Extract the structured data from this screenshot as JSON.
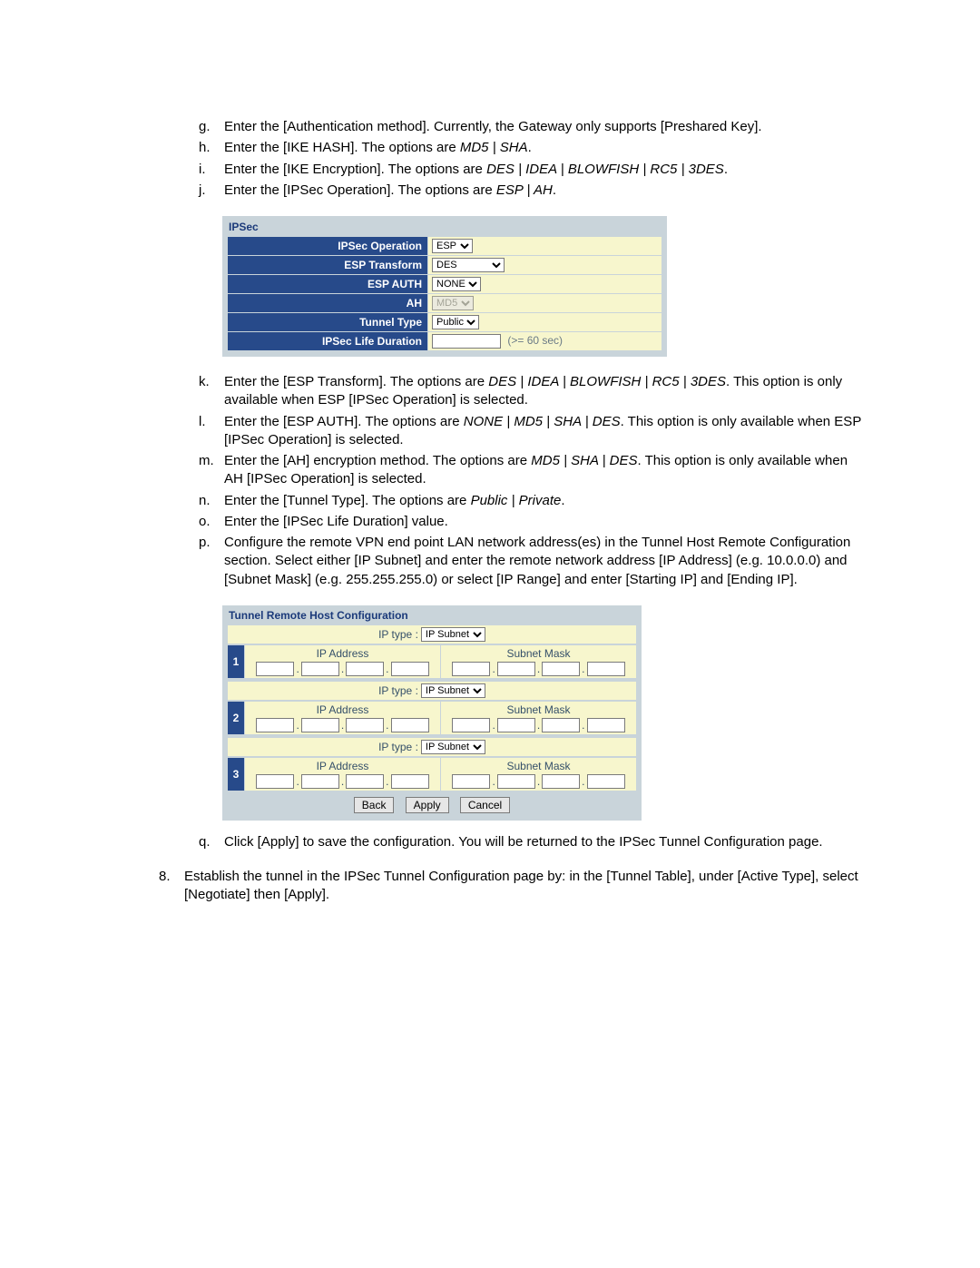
{
  "colors": {
    "panel_bg": "#c9d4da",
    "header_bg": "#274a8a",
    "header_text": "#ffffff",
    "cell_bg": "#f7f6cd",
    "title_text": "#1b3a7a",
    "muted_text": "#35506a",
    "hint_text": "#6a7a86"
  },
  "intro_items": [
    {
      "marker": "g.",
      "text": "Enter the [Authentication method].  Currently, the Gateway only supports [Preshared Key]."
    },
    {
      "marker": "h.",
      "text_pre": "Enter the [IKE HASH].  The options are ",
      "text_em": "MD5 | SHA",
      "text_post": "."
    },
    {
      "marker": "i.",
      "text_pre": "Enter the [IKE Encryption].  The options are ",
      "text_em": "DES | IDEA | BLOWFISH | RC5 | 3DES",
      "text_post": "."
    },
    {
      "marker": "j.",
      "text_pre": "Enter the [IPSec Operation].  The options are ",
      "text_em": "ESP | AH",
      "text_post": "."
    }
  ],
  "ipsec_panel": {
    "title": "IPSec",
    "rows": {
      "op": {
        "label": "IPSec Operation",
        "value": "ESP"
      },
      "esp": {
        "label": "ESP Transform",
        "value": "DES"
      },
      "auth": {
        "label": "ESP AUTH",
        "value": "NONE"
      },
      "ah": {
        "label": "AH",
        "value": "MD5",
        "disabled": true
      },
      "tun": {
        "label": "Tunnel Type",
        "value": "Public"
      },
      "life": {
        "label": "IPSec Life Duration",
        "hint": "(>= 60 sec)"
      }
    }
  },
  "mid_items": {
    "k": {
      "marker": "k.",
      "pre": "Enter the [ESP Transform].  The options are ",
      "em": "DES | IDEA | BLOWFISH | RC5 | 3DES",
      "post": ".  This option is only available when ESP [IPSec Operation] is selected."
    },
    "l": {
      "marker": "l.",
      "pre": "Enter the [ESP AUTH].  The options are ",
      "em": "NONE | MD5 | SHA | DES",
      "post": ".  This option is only available when ESP [IPSec Operation] is selected."
    },
    "m": {
      "marker": "m.",
      "pre": "Enter the [AH] encryption method.  The options are ",
      "em": "MD5 | SHA | DES",
      "post": ".  This option is only available when AH [IPSec Operation] is selected."
    },
    "n": {
      "marker": "n.",
      "pre": "Enter the [Tunnel Type].  The options are ",
      "em": "Public | Private",
      "post": "."
    },
    "o": {
      "marker": "o.",
      "text": "Enter the [IPSec Life Duration] value."
    },
    "p": {
      "marker": "p.",
      "text": "Configure the remote VPN end point LAN network address(es) in the Tunnel Host Remote Configuration section.  Select either [IP Subnet] and enter the remote network address [IP Address] (e.g. 10.0.0.0) and [Subnet Mask] (e.g. 255.255.255.0) or select [IP Range] and enter [Starting IP] and [Ending IP]."
    }
  },
  "tunnel_panel": {
    "title": "Tunnel Remote Host Configuration",
    "ip_type_label": "IP type :",
    "ip_type_value": "IP Subnet",
    "col_ip": "IP Address",
    "col_mask": "Subnet Mask",
    "rows": [
      "1",
      "2",
      "3"
    ],
    "buttons": {
      "back": "Back",
      "apply": "Apply",
      "cancel": "Cancel"
    }
  },
  "after_items": {
    "q": {
      "marker": "q.",
      "text": "Click [Apply] to save the configuration.  You will be returned to the IPSec Tunnel Configuration page."
    }
  },
  "numbered": {
    "eight": {
      "marker": "8.",
      "text": "Establish the tunnel in the IPSec Tunnel Configuration page by: in the [Tunnel Table], under [Active Type], select [Negotiate] then [Apply]."
    }
  }
}
